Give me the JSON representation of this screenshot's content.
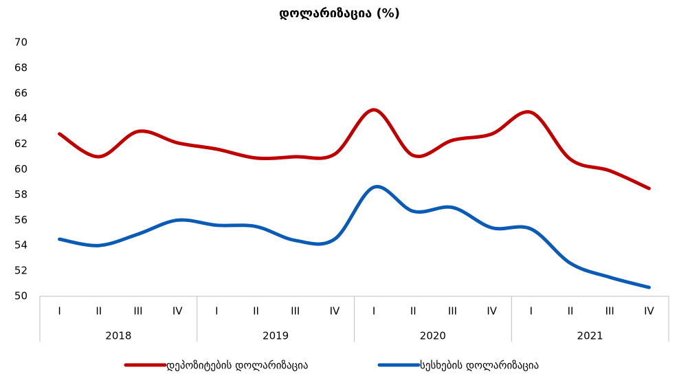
{
  "chart_data": {
    "type": "line",
    "title": "დოლარიზაცია (%)",
    "categories": [
      "I",
      "II",
      "III",
      "IV",
      "I",
      "II",
      "III",
      "IV",
      "I",
      "II",
      "III",
      "IV",
      "I",
      "II",
      "III",
      "IV"
    ],
    "years": [
      "2018",
      "2019",
      "2020",
      "2021"
    ],
    "series": [
      {
        "name": "დეპოზიტების დოლარიზაცია",
        "color": "#c00000",
        "values": [
          62.8,
          61.0,
          63.0,
          62.1,
          61.6,
          60.9,
          61.0,
          61.2,
          64.7,
          61.1,
          62.3,
          62.8,
          64.5,
          60.8,
          59.9,
          58.5
        ]
      },
      {
        "name": "სესხების დოლარიზაცია",
        "color": "#0a5bb5",
        "values": [
          54.5,
          54.0,
          54.9,
          56.0,
          55.6,
          55.5,
          54.4,
          54.5,
          58.6,
          56.7,
          57.0,
          55.4,
          55.3,
          52.6,
          51.5,
          50.7
        ]
      }
    ],
    "ylim": [
      50,
      70
    ],
    "yticks": [
      50,
      52,
      54,
      56,
      58,
      60,
      62,
      64,
      66,
      68,
      70
    ],
    "grid": false,
    "legend": "bottom"
  }
}
